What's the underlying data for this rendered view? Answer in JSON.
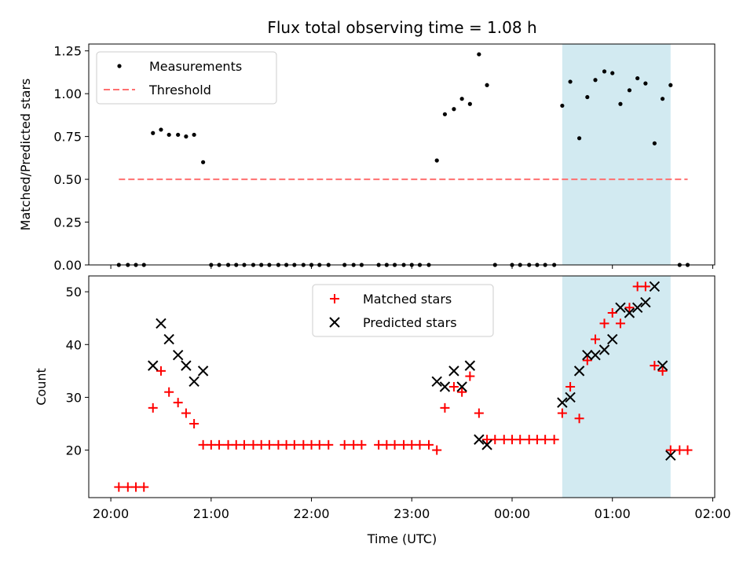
{
  "chart_data": {
    "type": "scatter",
    "title": "Flux total observing time = 1.08 h",
    "xlabel": "Time (UTC)",
    "xticks": [
      "20:00",
      "21:00",
      "22:00",
      "23:00",
      "00:00",
      "01:00",
      "02:00"
    ],
    "xlim_hours": [
      19.78,
      26.02
    ],
    "highlight_span_hours": [
      24.5,
      25.58
    ],
    "colors": {
      "measurement": "#000000",
      "threshold": "#ff7070",
      "matched": "#ff0000",
      "predicted": "#000000",
      "span": "#add8e6"
    },
    "top": {
      "ylabel": "Matched/Predicted stars",
      "ylim": [
        0,
        1.29
      ],
      "yticks": [
        "0.00",
        "0.25",
        "0.50",
        "0.75",
        "1.00",
        "1.25"
      ],
      "legend": [
        "Measurements",
        "Threshold"
      ],
      "legend_position": "upper left",
      "threshold": {
        "value": 0.5,
        "x_range": [
          20.08,
          25.75
        ]
      },
      "measurements": {
        "x": [
          20.08,
          20.17,
          20.25,
          20.33,
          20.42,
          20.5,
          20.58,
          20.67,
          20.75,
          20.83,
          20.92,
          21.0,
          21.08,
          21.17,
          21.25,
          21.33,
          21.42,
          21.5,
          21.58,
          21.67,
          21.75,
          21.83,
          21.92,
          22.0,
          22.08,
          22.17,
          22.33,
          22.42,
          22.5,
          22.67,
          22.75,
          22.83,
          22.92,
          23.0,
          23.08,
          23.17,
          23.25,
          23.33,
          23.42,
          23.5,
          23.58,
          23.67,
          23.75,
          23.83,
          24.0,
          24.08,
          24.17,
          24.25,
          24.33,
          24.42,
          24.5,
          24.58,
          24.67,
          24.75,
          24.83,
          24.92,
          25.0,
          25.08,
          25.17,
          25.25,
          25.33,
          25.42,
          25.5,
          25.58,
          25.67,
          25.75
        ],
        "y": [
          0,
          0,
          0,
          0,
          0.77,
          0.79,
          0.76,
          0.76,
          0.75,
          0.76,
          0.6,
          0,
          0,
          0,
          0,
          0,
          0,
          0,
          0,
          0,
          0,
          0,
          0,
          0,
          0,
          0,
          0,
          0,
          0,
          0,
          0,
          0,
          0,
          0,
          0,
          0,
          0.61,
          0.88,
          0.91,
          0.97,
          0.94,
          1.23,
          1.05,
          0,
          0,
          0,
          0,
          0,
          0,
          0,
          0.93,
          1.07,
          0.74,
          0.98,
          1.08,
          1.13,
          1.12,
          0.94,
          1.02,
          1.09,
          1.06,
          0.71,
          0.97,
          1.05,
          0,
          0
        ]
      }
    },
    "bottom": {
      "ylabel": "Count",
      "ylim": [
        11,
        53
      ],
      "yticks": [
        "20",
        "30",
        "40",
        "50"
      ],
      "legend": [
        "Matched stars",
        "Predicted stars"
      ],
      "legend_position": "upper center",
      "series": [
        {
          "name": "Matched stars",
          "x": [
            20.08,
            20.17,
            20.25,
            20.33,
            20.42,
            20.5,
            20.58,
            20.67,
            20.75,
            20.83,
            20.92,
            21.0,
            21.08,
            21.17,
            21.25,
            21.33,
            21.42,
            21.5,
            21.58,
            21.67,
            21.75,
            21.83,
            21.92,
            22.0,
            22.08,
            22.17,
            22.33,
            22.42,
            22.5,
            22.67,
            22.75,
            22.83,
            22.92,
            23.0,
            23.08,
            23.17,
            23.25,
            23.33,
            23.42,
            23.5,
            23.58,
            23.67,
            23.75,
            23.83,
            23.92,
            24.0,
            24.08,
            24.17,
            24.25,
            24.33,
            24.42,
            24.5,
            24.58,
            24.67,
            24.75,
            24.83,
            24.92,
            25.0,
            25.08,
            25.17,
            25.25,
            25.33,
            25.42,
            25.5,
            25.58,
            25.67,
            25.75
          ],
          "y": [
            13,
            13,
            13,
            13,
            28,
            35,
            31,
            29,
            27,
            25,
            21,
            21,
            21,
            21,
            21,
            21,
            21,
            21,
            21,
            21,
            21,
            21,
            21,
            21,
            21,
            21,
            21,
            21,
            21,
            21,
            21,
            21,
            21,
            21,
            21,
            21,
            20,
            28,
            32,
            31,
            34,
            27,
            22,
            22,
            22,
            22,
            22,
            22,
            22,
            22,
            22,
            27,
            32,
            26,
            37,
            41,
            44,
            46,
            44,
            47,
            51,
            51,
            36,
            35,
            20,
            20,
            20
          ]
        },
        {
          "name": "Predicted stars",
          "x": [
            20.42,
            20.5,
            20.58,
            20.67,
            20.75,
            20.83,
            20.92,
            23.25,
            23.33,
            23.42,
            23.5,
            23.58,
            23.67,
            23.75,
            24.5,
            24.58,
            24.67,
            24.75,
            24.83,
            24.92,
            25.0,
            25.08,
            25.17,
            25.25,
            25.33,
            25.42,
            25.5,
            25.58
          ],
          "y": [
            36,
            44,
            41,
            38,
            36,
            33,
            35,
            33,
            32,
            35,
            32,
            36,
            22,
            21,
            29,
            30,
            35,
            38,
            38,
            39,
            41,
            47,
            46,
            47,
            48,
            51,
            36,
            19
          ]
        }
      ]
    }
  }
}
